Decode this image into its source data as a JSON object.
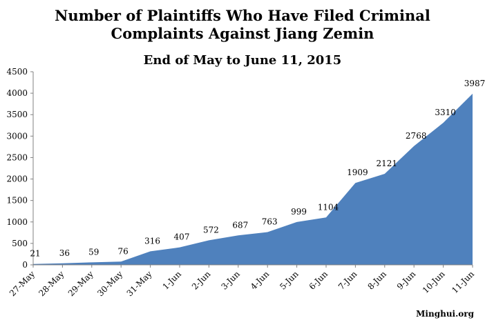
{
  "chart_data": {
    "type": "area",
    "title_line1": "Number of Plaintiffs Who Have Filed Criminal",
    "title_line2": "Complaints Against Jiang Zemin",
    "subtitle": "End of May to June 11, 2015",
    "categories": [
      "27-May",
      "28-May",
      "29-May",
      "30-May",
      "31-May",
      "1-Jun",
      "2-Jun",
      "3-Jun",
      "4-Jun",
      "5-Jun",
      "6-Jun",
      "7-Jun",
      "8-Jun",
      "9-Jun",
      "10-Jun",
      "11-Jun"
    ],
    "values": [
      21,
      36,
      59,
      76,
      316,
      407,
      572,
      687,
      763,
      999,
      1104,
      1909,
      2121,
      2768,
      3310,
      3987
    ],
    "yticks": [
      0,
      500,
      1000,
      1500,
      2000,
      2500,
      3000,
      3500,
      4000,
      4500
    ],
    "ylim": [
      0,
      4500
    ],
    "fill_color": "#4f81bd",
    "grid": false,
    "legend": "none"
  },
  "source": "Minghui.org"
}
